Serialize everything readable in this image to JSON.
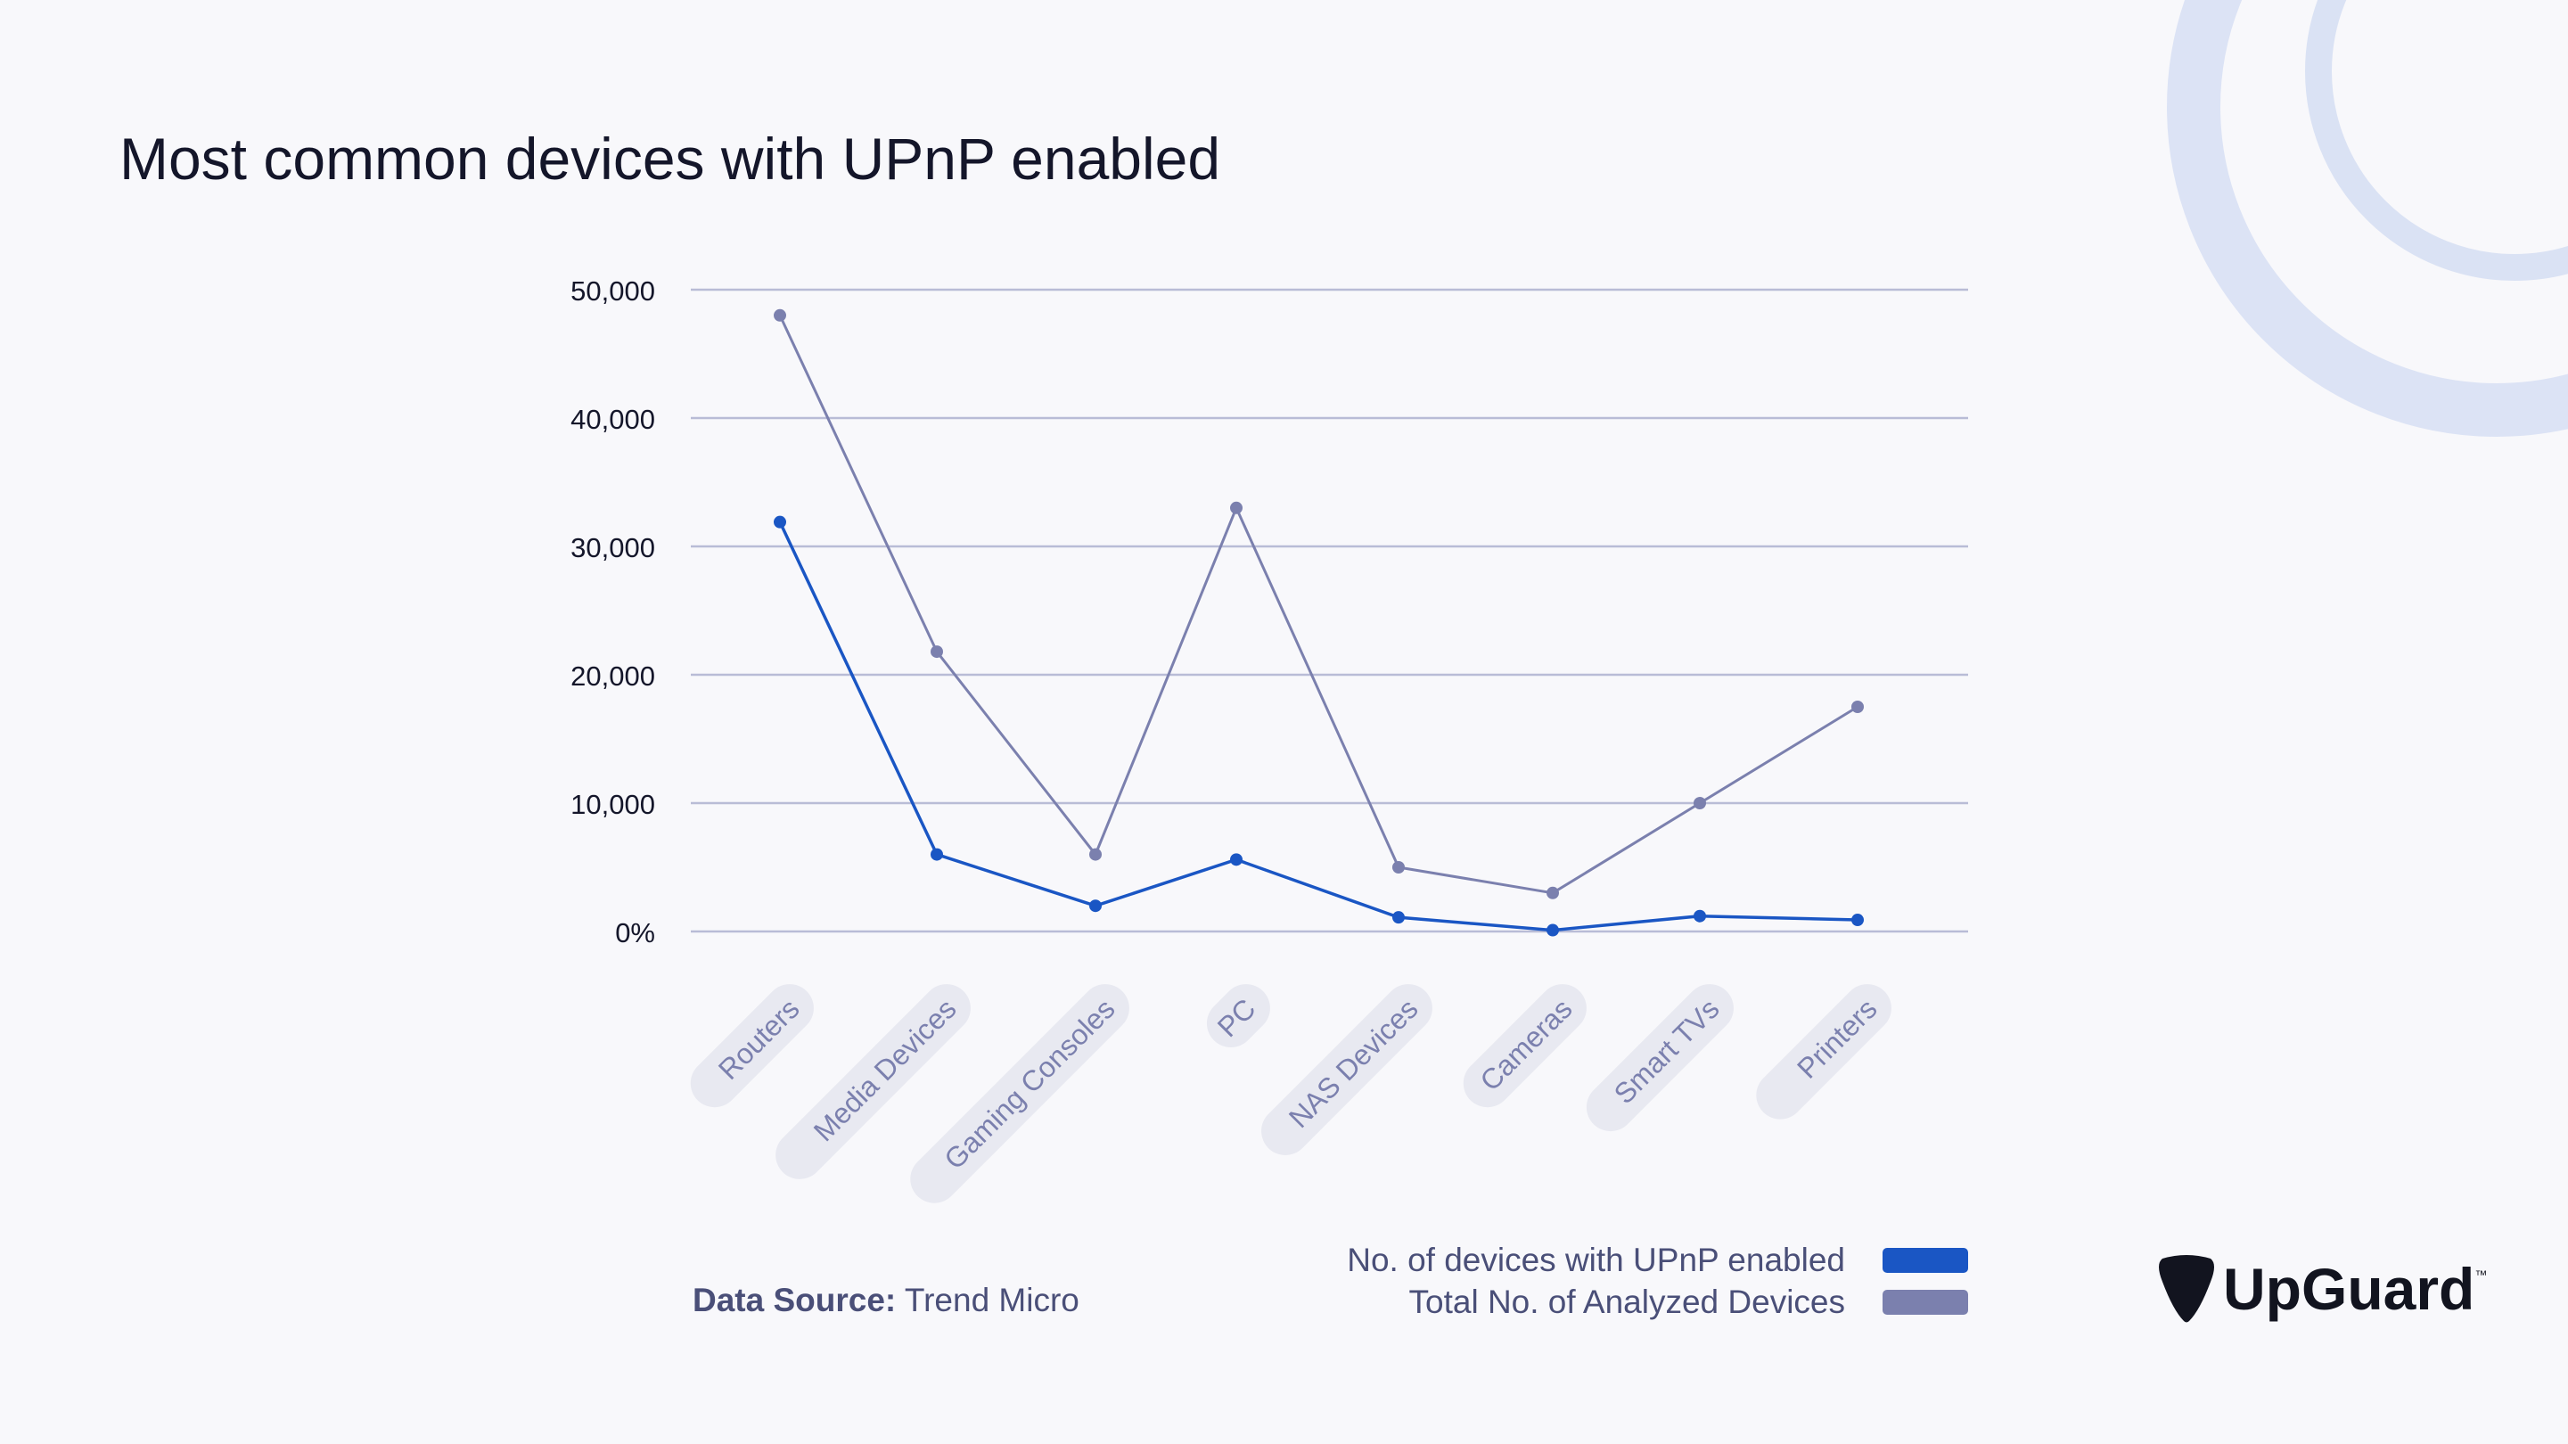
{
  "chart_data": {
    "type": "line",
    "title": "Most common devices with UPnP enabled",
    "categories": [
      "Routers",
      "Media Devices",
      "Gaming Consoles",
      "PC",
      "NAS Devices",
      "Cameras",
      "Smart TVs",
      "Printers"
    ],
    "series": [
      {
        "name": "No. of devices with UPnP enabled",
        "color": "#1a56c4",
        "values": [
          31900,
          6000,
          2000,
          5600,
          1100,
          100,
          1200,
          900
        ]
      },
      {
        "name": "Total No. of Analyzed Devices",
        "color": "#7b80ae",
        "values": [
          48000,
          21800,
          6000,
          33000,
          5000,
          3000,
          10000,
          17500
        ]
      }
    ],
    "yticks": [
      0,
      10000,
      20000,
      30000,
      40000,
      50000
    ],
    "ytick_labels": [
      "0%",
      "10,000",
      "20,000",
      "30,000",
      "40,000",
      "50,000"
    ],
    "ylim": [
      0,
      50000
    ],
    "grid": true,
    "legend_placement": "bottom-right"
  },
  "source": {
    "label": "Data Source:",
    "value": "Trend Micro"
  },
  "logo": {
    "text": "UpGuard",
    "tm": "™"
  }
}
